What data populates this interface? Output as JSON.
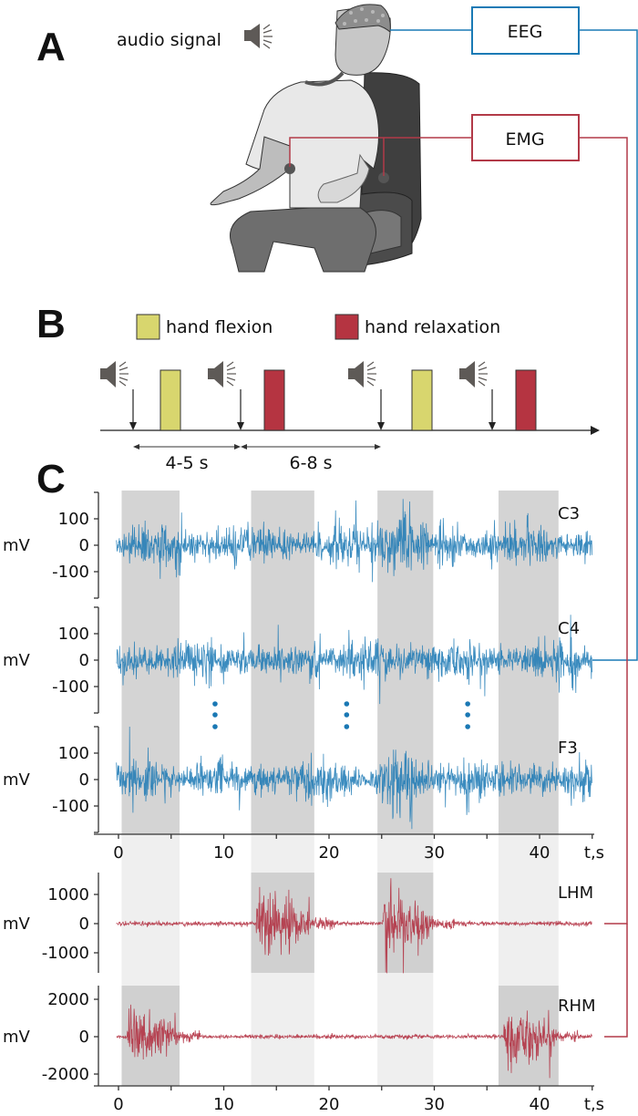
{
  "panels": {
    "A": {
      "letter": "A",
      "audio_label": "audio signal",
      "audio_icon": "speaker-icon",
      "recording_boxes": [
        {
          "label": "EEG",
          "color": "#1a7ab5"
        },
        {
          "label": "EMG",
          "color": "#b23a48"
        }
      ]
    },
    "B": {
      "letter": "B",
      "legend": [
        {
          "label": "hand flexion",
          "color": "#d8d66e"
        },
        {
          "label": "hand relaxation",
          "color": "#b53441"
        }
      ],
      "timeline_sequence": [
        "cue",
        "flexion",
        "cue",
        "relaxation",
        "cue",
        "flexion",
        "cue",
        "relaxation"
      ],
      "intervals": [
        {
          "label": "4-5 s"
        },
        {
          "label": "6-8 s"
        }
      ],
      "cue_color": "#5e5a57"
    },
    "C": {
      "letter": "C"
    }
  },
  "chart_data": [
    {
      "type": "line",
      "title": "EEG",
      "group": "EEG",
      "xlabel": "t,s",
      "x_ticks": [
        0,
        10,
        20,
        30,
        40
      ],
      "x_range": [
        -2,
        45
      ],
      "color": "#1a78b4",
      "shaded_intervals_s": [
        [
          0.3,
          5.8
        ],
        [
          12.6,
          18.6
        ],
        [
          24.6,
          29.9
        ],
        [
          36.1,
          41.8
        ]
      ],
      "continuation_marker": "⋮",
      "continuation_at_s": [
        9,
        21.5,
        33
      ],
      "series": [
        {
          "name": "C3",
          "ylabel": "mV",
          "y_ticks": [
            100,
            0,
            -100
          ],
          "ylim": [
            -200,
            200
          ],
          "amplitude_peak_mV": 200,
          "burst_regions_s": [
            [
              24,
              28
            ]
          ]
        },
        {
          "name": "C4",
          "ylabel": "mV",
          "y_ticks": [
            100,
            0,
            -100
          ],
          "ylim": [
            -200,
            200
          ],
          "amplitude_peak_mV": 130,
          "burst_regions_s": []
        },
        {
          "name": "F3",
          "ylabel": "mV",
          "y_ticks": [
            100,
            0,
            -100
          ],
          "ylim": [
            -200,
            200
          ],
          "amplitude_peak_mV": 150,
          "burst_regions_s": [
            [
              25,
              28
            ],
            [
              33,
              33.3
            ]
          ]
        }
      ]
    },
    {
      "type": "line",
      "title": "EMG",
      "group": "EMG",
      "xlabel": "t,s",
      "x_ticks": [
        0,
        10,
        20,
        30,
        40
      ],
      "x_range": [
        -2,
        45
      ],
      "color": "#b02a3c",
      "shaded_intervals_s": [
        [
          0.3,
          5.8
        ],
        [
          12.6,
          18.6
        ],
        [
          24.6,
          29.9
        ],
        [
          36.1,
          41.8
        ]
      ],
      "series": [
        {
          "name": "LHM",
          "ylabel": "mV",
          "y_ticks": [
            1000,
            0,
            -1000
          ],
          "ylim": [
            -1700,
            1700
          ],
          "active_intervals_s": [
            [
              12.6,
              18.6
            ],
            [
              24.6,
              29.9
            ]
          ],
          "amplitude_peak_mV": 1400
        },
        {
          "name": "RHM",
          "ylabel": "mV",
          "y_ticks": [
            2000,
            0,
            -2000
          ],
          "ylim": [
            -2800,
            2800
          ],
          "active_intervals_s": [
            [
              0.3,
              5.8
            ],
            [
              36.1,
              41.8
            ]
          ],
          "amplitude_peak_mV": 2000
        }
      ]
    }
  ]
}
